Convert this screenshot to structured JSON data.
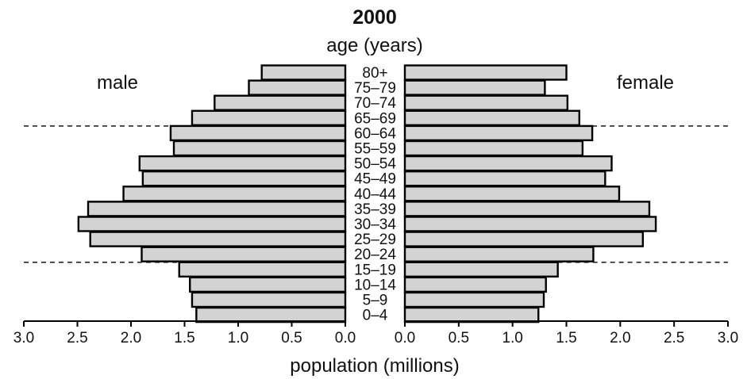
{
  "chart_data": {
    "type": "bar",
    "orientation": "horizontal-pyramid",
    "title": "2000",
    "subtitle": "age (years)",
    "xlabel": "population (millions)",
    "left_label": "male",
    "right_label": "female",
    "xlim": [
      0,
      3.0
    ],
    "x_ticks": [
      "3.0",
      "2.5",
      "2.0",
      "1.5",
      "1.0",
      "0.5",
      "0.0"
    ],
    "x_ticks_right": [
      "0.0",
      "0.5",
      "1.0",
      "1.5",
      "2.0",
      "2.5",
      "3.0"
    ],
    "categories": [
      "80+",
      "75–79",
      "70–74",
      "65–69",
      "60–64",
      "55–59",
      "50–54",
      "45–49",
      "40–44",
      "35–39",
      "30–34",
      "25–29",
      "20–24",
      "15–19",
      "10–14",
      "5–9",
      "0–4"
    ],
    "series": [
      {
        "name": "male",
        "values": [
          0.78,
          0.9,
          1.22,
          1.43,
          1.63,
          1.6,
          1.92,
          1.89,
          2.07,
          2.4,
          2.49,
          2.38,
          1.9,
          1.55,
          1.45,
          1.43,
          1.39
        ]
      },
      {
        "name": "female",
        "values": [
          1.5,
          1.3,
          1.51,
          1.62,
          1.74,
          1.65,
          1.92,
          1.86,
          1.99,
          2.27,
          2.33,
          2.21,
          1.75,
          1.42,
          1.31,
          1.29,
          1.24
        ]
      }
    ],
    "reference_lines": [
      "60–64",
      "15–19"
    ],
    "grid": false
  }
}
